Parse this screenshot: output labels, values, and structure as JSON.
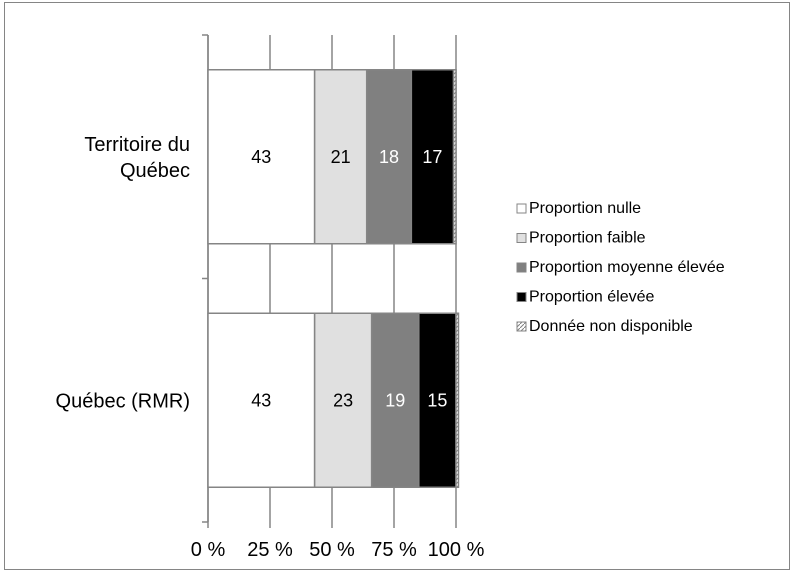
{
  "chart_data": {
    "type": "bar",
    "orientation": "horizontal",
    "stacked": true,
    "title": "",
    "xlabel": "",
    "ylabel": "",
    "xlim": [
      0,
      100
    ],
    "tick_labels": [
      "0 %",
      "25 %",
      "50 %",
      "75 %",
      "100 %"
    ],
    "categories": [
      "Territoire du Québec",
      "Québec (RMR)"
    ],
    "category_lines": [
      [
        "Territoire du",
        "Québec"
      ],
      [
        "Québec (RMR)"
      ]
    ],
    "series": [
      {
        "name": "Proportion nulle",
        "values": [
          43,
          43
        ],
        "color": "#ffffff",
        "label_color": "#000000"
      },
      {
        "name": "Proportion faible",
        "values": [
          21,
          23
        ],
        "color": "#e0e0e0",
        "label_color": "#000000"
      },
      {
        "name": "Proportion moyenne élevée",
        "values": [
          18,
          19
        ],
        "color": "#808080",
        "label_color": "#ffffff"
      },
      {
        "name": "Proportion élevée",
        "values": [
          17,
          15
        ],
        "color": "#000000",
        "label_color": "#ffffff"
      },
      {
        "name": "Donnée non disponible",
        "values": [
          1,
          1
        ],
        "color": "#d9d9d9",
        "label_color": "#000000",
        "hatched": true
      }
    ],
    "legend_position": "right",
    "grid": true
  }
}
